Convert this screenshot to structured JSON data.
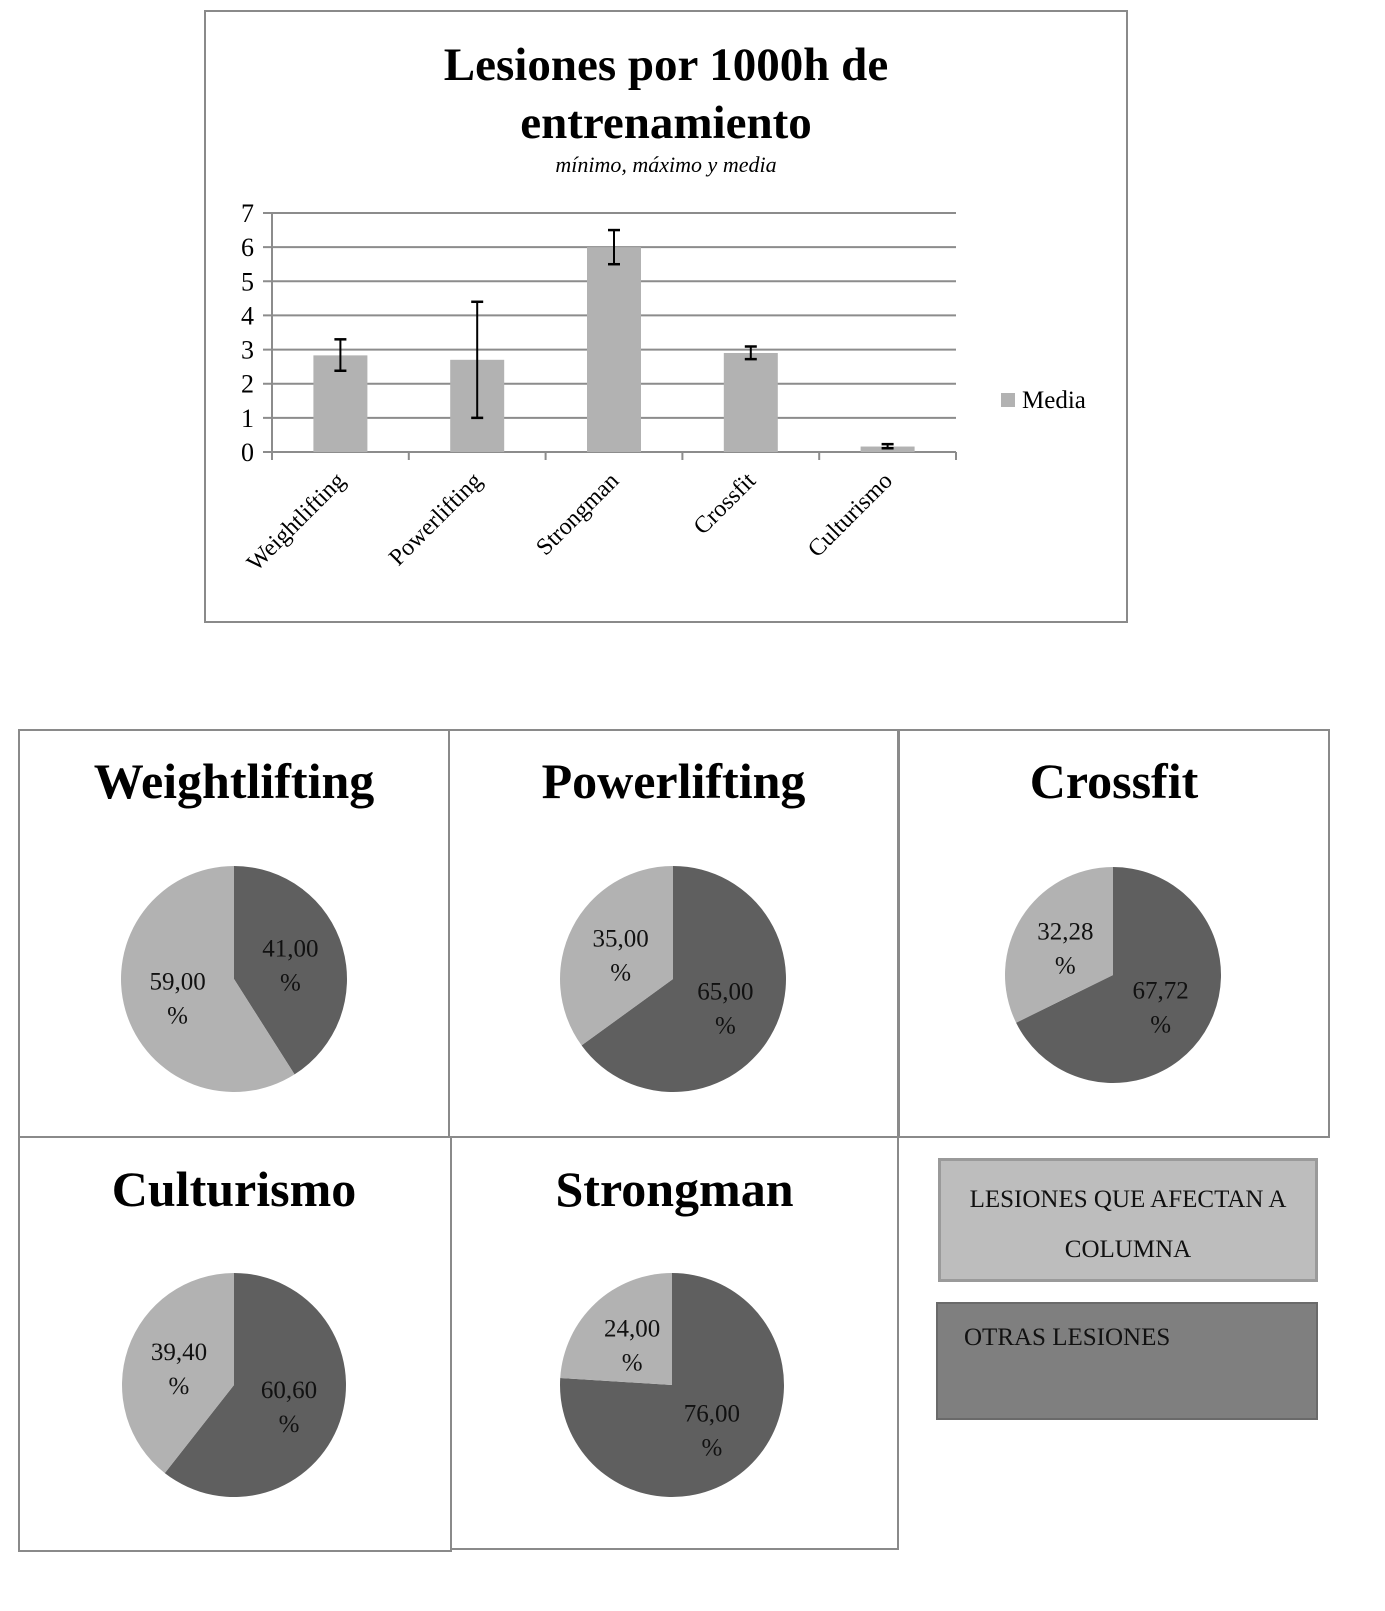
{
  "chart_data": [
    {
      "type": "bar",
      "title": "Lesiones por 1000h de entrenamiento",
      "subtitle": "mínimo, máximo y media",
      "categories": [
        "Weightlifting",
        "Powerlifting",
        "Strongman",
        "Crossfit",
        "Culturismo"
      ],
      "series": [
        {
          "name": "Media",
          "values": [
            2.83,
            2.7,
            6.0,
            2.9,
            0.16
          ],
          "min": [
            2.38,
            1.0,
            5.5,
            2.72,
            0.11
          ],
          "max": [
            3.3,
            4.4,
            6.5,
            3.09,
            0.23
          ]
        }
      ],
      "ylim": [
        0,
        7
      ],
      "yticks": [
        "0",
        "1",
        "2",
        "3",
        "4",
        "5",
        "6",
        "7"
      ],
      "grid": true,
      "legend": "right",
      "color": "#b2b2b2"
    },
    {
      "type": "pie",
      "charts": [
        {
          "title": "Weightlifting",
          "values": [
            41.0,
            59.0
          ],
          "labels": [
            "41,00 %",
            "59,00 %"
          ]
        },
        {
          "title": "Powerlifting",
          "values": [
            65.0,
            35.0
          ],
          "labels": [
            "65,00 %",
            "35,00 %"
          ]
        },
        {
          "title": "Crossfit",
          "values": [
            67.72,
            32.28
          ],
          "labels": [
            "67,72 %",
            "32,28 %"
          ]
        },
        {
          "title": "Culturismo",
          "values": [
            60.6,
            39.4
          ],
          "labels": [
            "60,60 %",
            "39,40 %"
          ]
        },
        {
          "title": "Strongman",
          "values": [
            76.0,
            24.0
          ],
          "labels": [
            "76,00 %",
            "24,00 %"
          ]
        }
      ],
      "slice_order": [
        "otras",
        "columna"
      ],
      "colors": {
        "otras": "#5f5f5f",
        "columna": "#b2b2b2"
      },
      "legend": [
        {
          "label": "LESIONES QUE AFECTAN A COLUMNA",
          "color": "#bdbdbd"
        },
        {
          "label": "OTRAS LESIONES",
          "color": "#7f7f7f"
        }
      ]
    }
  ]
}
